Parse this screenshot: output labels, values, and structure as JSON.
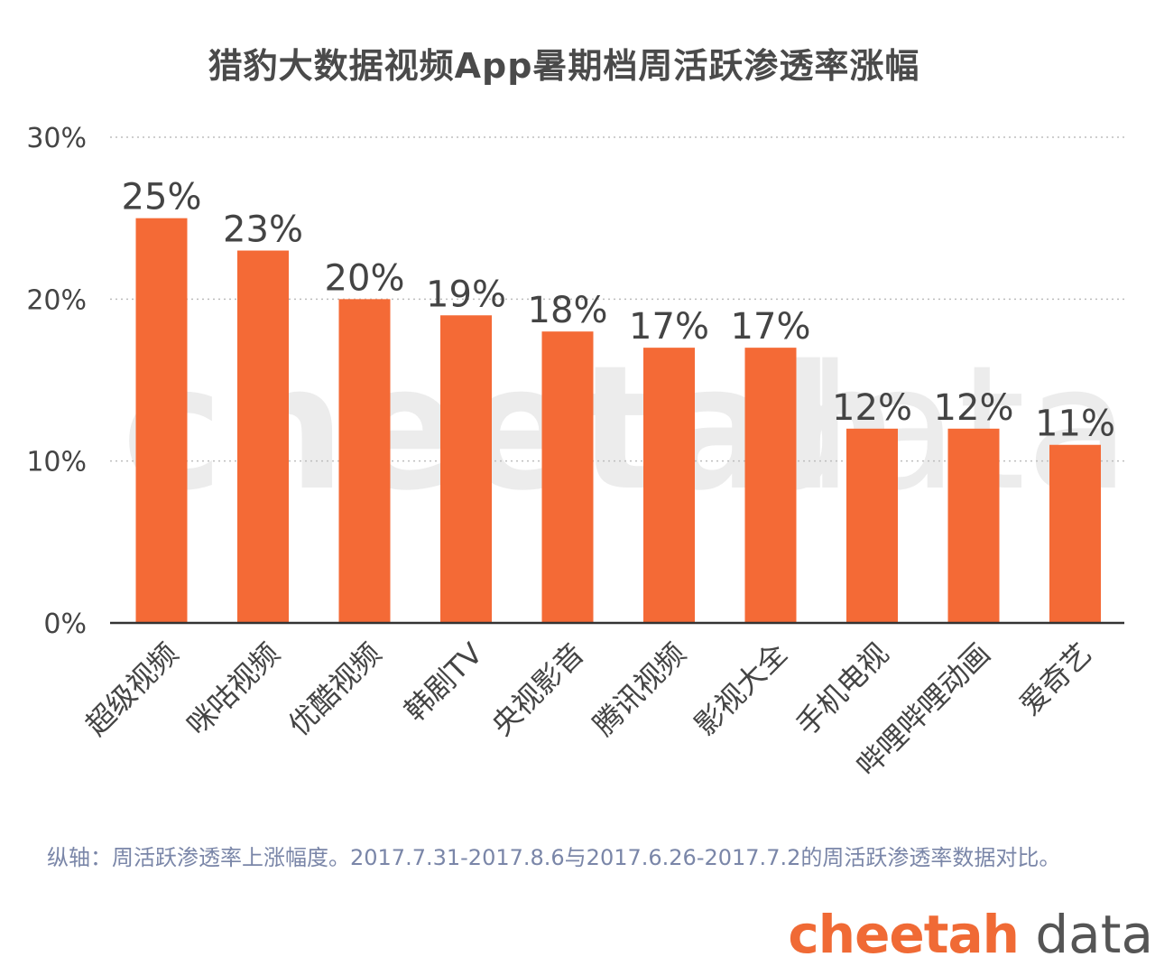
{
  "title": "猎豹大数据视频App暑期档周活跃渗透率涨幅",
  "footnote": "纵轴：周活跃渗透率上涨幅度。2017.7.31-2017.8.6与2017.6.26-2017.7.2的周活跃渗透率数据对比。",
  "logo": {
    "bold": "cheetah",
    "light": "data"
  },
  "watermark": {
    "bold": "cheetah",
    "light": "data"
  },
  "colors": {
    "bar": "#f46a36",
    "text": "#444444",
    "grid": "#bdbdbd",
    "axis": "#333333"
  },
  "chart_data": {
    "type": "bar",
    "title": "猎豹大数据视频App暑期档周活跃渗透率涨幅",
    "categories": [
      "超级视频",
      "咪咕视频",
      "优酷视频",
      "韩剧TV",
      "央视影音",
      "腾讯视频",
      "影视大全",
      "手机电视",
      "哔哩哔哩动画",
      "爱奇艺"
    ],
    "values": [
      25,
      23,
      20,
      19,
      18,
      17,
      17,
      12,
      12,
      11
    ],
    "value_labels": [
      "25%",
      "23%",
      "20%",
      "19%",
      "18%",
      "17%",
      "17%",
      "12%",
      "12%",
      "11%"
    ],
    "ylim": [
      0,
      30
    ],
    "yticks": [
      0,
      10,
      20,
      30
    ],
    "ytick_labels": [
      "0%",
      "10%",
      "20%",
      "30%"
    ],
    "xlabel": "",
    "ylabel": "",
    "grid": true
  }
}
